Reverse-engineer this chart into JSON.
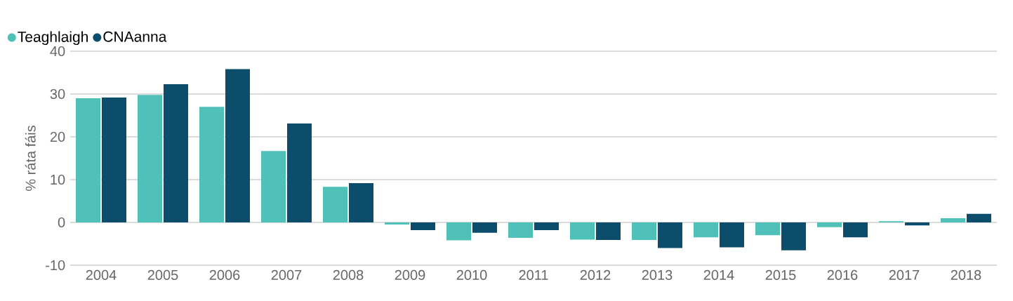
{
  "chart_data": {
    "type": "bar",
    "ylabel": "% ráta fáis",
    "categories": [
      "2004",
      "2005",
      "2006",
      "2007",
      "2008",
      "2009",
      "2010",
      "2011",
      "2012",
      "2013",
      "2014",
      "2015",
      "2016",
      "2017",
      "2018"
    ],
    "series": [
      {
        "name": "Teaghlaigh",
        "color": "#4fc1b8",
        "values": [
          29.0,
          29.8,
          27.0,
          16.7,
          8.3,
          -0.5,
          -4.2,
          -3.6,
          -4.0,
          -4.1,
          -3.5,
          -3.0,
          -1.1,
          0.3,
          1.0
        ]
      },
      {
        "name": "CNAanna",
        "color": "#0b4d6b",
        "values": [
          29.2,
          32.3,
          35.8,
          23.1,
          9.2,
          -1.8,
          -2.4,
          -1.8,
          -4.1,
          -6.0,
          -5.8,
          -6.5,
          -3.5,
          -0.7,
          2.0
        ]
      }
    ],
    "ylim": [
      -10,
      40
    ],
    "yticks": [
      -10,
      0,
      10,
      20,
      30,
      40
    ],
    "grid": "y",
    "legend": "top left"
  }
}
